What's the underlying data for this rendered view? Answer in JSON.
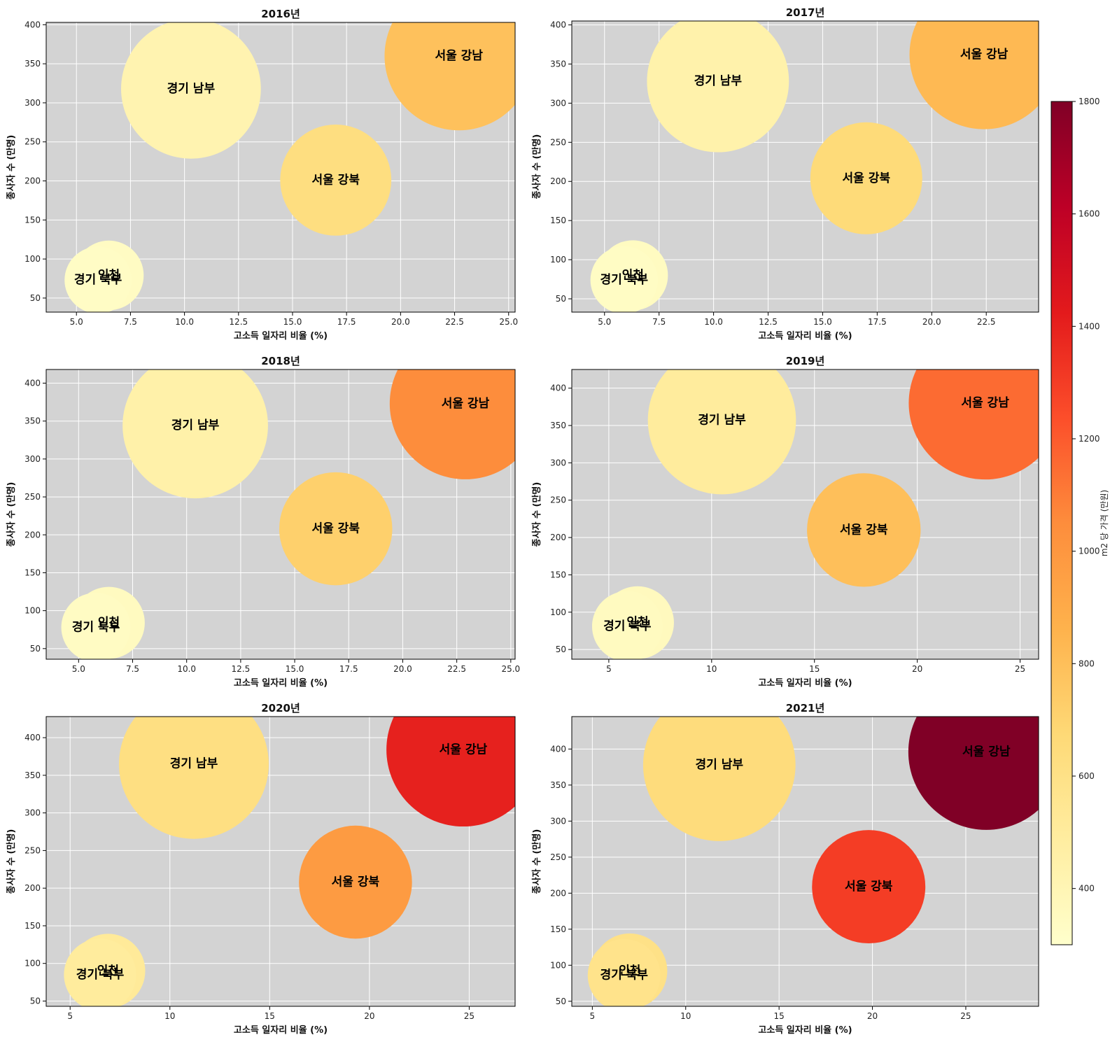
{
  "chart_data": [
    {
      "type": "scatter",
      "title": "2016년",
      "xlabel": "고소득 일자리 비율 (%)",
      "ylabel": "종사자 수 (만명)",
      "xlim": [
        3.6,
        25.3
      ],
      "ylim": [
        32,
        403
      ],
      "xticks": [
        5.0,
        7.5,
        10.0,
        12.5,
        15.0,
        17.5,
        20.0,
        22.5,
        25.0
      ],
      "xtick_labels": [
        "5.0",
        "7.5",
        "10.0",
        "12.5",
        "15.0",
        "17.5",
        "20.0",
        "22.5",
        "25.0"
      ],
      "yticks": [
        50,
        100,
        150,
        200,
        250,
        300,
        350,
        400
      ],
      "points": [
        {
          "label": "경기 북부",
          "x": 6.0,
          "y": 73,
          "price": 330
        },
        {
          "label": "인천",
          "x": 6.5,
          "y": 79,
          "price": 340
        },
        {
          "label": "경기 남부",
          "x": 10.3,
          "y": 318,
          "price": 420
        },
        {
          "label": "서울 강북",
          "x": 17.0,
          "y": 201,
          "price": 630
        },
        {
          "label": "서울 강남",
          "x": 22.7,
          "y": 360,
          "price": 790
        }
      ]
    },
    {
      "type": "scatter",
      "title": "2017년",
      "xlabel": "고소득 일자리 비율 (%)",
      "ylabel": "종사자 수 (만명)",
      "xlim": [
        3.5,
        24.9
      ],
      "ylim": [
        33,
        405
      ],
      "xticks": [
        5.0,
        7.5,
        10.0,
        12.5,
        15.0,
        17.5,
        20.0,
        22.5
      ],
      "xtick_labels": [
        "5.0",
        "7.5",
        "10.0",
        "12.5",
        "15.0",
        "17.5",
        "20.0",
        "22.5"
      ],
      "yticks": [
        50,
        100,
        150,
        200,
        250,
        300,
        350,
        400
      ],
      "points": [
        {
          "label": "경기 북부",
          "x": 5.9,
          "y": 74,
          "price": 335
        },
        {
          "label": "인천",
          "x": 6.3,
          "y": 80,
          "price": 345
        },
        {
          "label": "경기 남부",
          "x": 10.2,
          "y": 328,
          "price": 440
        },
        {
          "label": "서울 강북",
          "x": 17.0,
          "y": 204,
          "price": 660
        },
        {
          "label": "서울 강남",
          "x": 22.4,
          "y": 362,
          "price": 830
        }
      ]
    },
    {
      "type": "scatter",
      "title": "2018년",
      "xlabel": "고소득 일자리 비율 (%)",
      "ylabel": "종사자 수 (만명)",
      "xlim": [
        3.5,
        25.2
      ],
      "ylim": [
        36,
        418
      ],
      "xticks": [
        5.0,
        7.5,
        10.0,
        12.5,
        15.0,
        17.5,
        20.0,
        22.5,
        25.0
      ],
      "xtick_labels": [
        "5.0",
        "7.5",
        "10.0",
        "12.5",
        "15.0",
        "17.5",
        "20.0",
        "22.5",
        "25.0"
      ],
      "yticks": [
        50,
        100,
        150,
        200,
        250,
        300,
        350,
        400
      ],
      "points": [
        {
          "label": "경기 북부",
          "x": 5.8,
          "y": 78,
          "price": 340
        },
        {
          "label": "인천",
          "x": 6.4,
          "y": 84,
          "price": 350
        },
        {
          "label": "경기 남부",
          "x": 10.4,
          "y": 344,
          "price": 450
        },
        {
          "label": "서울 강북",
          "x": 16.9,
          "y": 208,
          "price": 720
        },
        {
          "label": "서울 강남",
          "x": 22.9,
          "y": 373,
          "price": 1050
        }
      ]
    },
    {
      "type": "scatter",
      "title": "2019년",
      "xlabel": "고소득 일자리 비율 (%)",
      "ylabel": "종사자 수 (만명)",
      "xlim": [
        3.2,
        25.9
      ],
      "ylim": [
        37,
        425
      ],
      "xticks": [
        5,
        10,
        15,
        20,
        25
      ],
      "xtick_labels": [
        "5",
        "10",
        "15",
        "20",
        "25"
      ],
      "yticks": [
        50,
        100,
        150,
        200,
        250,
        300,
        350,
        400
      ],
      "points": [
        {
          "label": "경기 북부",
          "x": 5.9,
          "y": 81,
          "price": 350
        },
        {
          "label": "인천",
          "x": 6.4,
          "y": 86,
          "price": 360
        },
        {
          "label": "경기 남부",
          "x": 10.5,
          "y": 357,
          "price": 500
        },
        {
          "label": "서울 강북",
          "x": 17.4,
          "y": 210,
          "price": 800
        },
        {
          "label": "서울 강남",
          "x": 23.3,
          "y": 380,
          "price": 1150
        }
      ]
    },
    {
      "type": "scatter",
      "title": "2020년",
      "xlabel": "고소득 일자리 비율 (%)",
      "ylabel": "종사자 수 (만명)",
      "xlim": [
        3.8,
        27.3
      ],
      "ylim": [
        43,
        428
      ],
      "xticks": [
        5,
        10,
        15,
        20,
        25
      ],
      "xtick_labels": [
        "5",
        "10",
        "15",
        "20",
        "25"
      ],
      "yticks": [
        50,
        100,
        150,
        200,
        250,
        300,
        350,
        400
      ],
      "points": [
        {
          "label": "경기 북부",
          "x": 6.5,
          "y": 85,
          "price": 500
        },
        {
          "label": "인천",
          "x": 6.9,
          "y": 90,
          "price": 520
        },
        {
          "label": "경기 남부",
          "x": 11.2,
          "y": 365,
          "price": 620
        },
        {
          "label": "서울 강북",
          "x": 19.3,
          "y": 208,
          "price": 980
        },
        {
          "label": "서울 강남",
          "x": 24.7,
          "y": 384,
          "price": 1400
        }
      ]
    },
    {
      "type": "scatter",
      "title": "2021년",
      "xlabel": "고소득 일자리 비율 (%)",
      "ylabel": "종사자 수 (만명)",
      "xlim": [
        3.9,
        28.9
      ],
      "ylim": [
        43,
        445
      ],
      "xticks": [
        5,
        10,
        15,
        20,
        25
      ],
      "xtick_labels": [
        "5",
        "10",
        "15",
        "20",
        "25"
      ],
      "yticks": [
        50,
        100,
        150,
        200,
        250,
        300,
        350,
        400
      ],
      "points": [
        {
          "label": "경기 북부",
          "x": 6.7,
          "y": 86,
          "price": 580
        },
        {
          "label": "인천",
          "x": 7.0,
          "y": 92,
          "price": 600
        },
        {
          "label": "경기 남부",
          "x": 11.8,
          "y": 378,
          "price": 650
        },
        {
          "label": "서울 강북",
          "x": 19.8,
          "y": 209,
          "price": 1300
        },
        {
          "label": "서울 강남",
          "x": 26.1,
          "y": 396,
          "price": 1800
        }
      ]
    }
  ],
  "colorbar": {
    "label": "m2 당 가격 (만원)",
    "min": 300,
    "max": 1800,
    "ticks": [
      400,
      600,
      800,
      1000,
      1200,
      1400,
      1600,
      1800
    ],
    "colormap": "YlOrRd",
    "stops": [
      "#ffffcc",
      "#ffeda0",
      "#fed976",
      "#feb24c",
      "#fd8d3c",
      "#fc4e2a",
      "#e31a1c",
      "#bd0026",
      "#800026"
    ]
  },
  "style": {
    "plot_background": "#d3d3d3",
    "grid": true,
    "grid_color": "#ffffff"
  }
}
